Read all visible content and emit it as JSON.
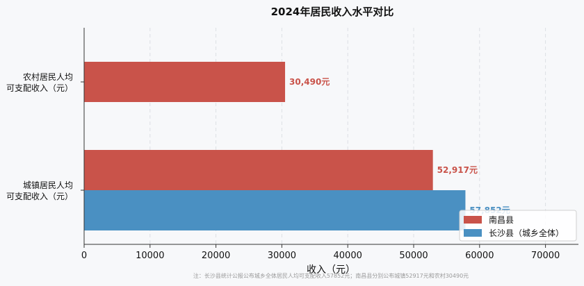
{
  "chart_data": {
    "type": "bar",
    "orientation": "horizontal",
    "title": "2024年居民收入水平对比",
    "xlabel": "收入（元）",
    "ylabel": "",
    "xlim": [
      0,
      75000
    ],
    "xticks": [
      0,
      10000,
      20000,
      30000,
      40000,
      50000,
      60000,
      70000
    ],
    "grid": true,
    "legend_position": "bottom-right",
    "categories": [
      "农村居民人均\n可支配收入（元）",
      "城镇居民人均\n可支配收入（元）"
    ],
    "series": [
      {
        "name": "南昌县",
        "color": "#c9534a",
        "values": [
          30490,
          52917
        ],
        "labels": [
          "30,490元",
          "52,917元"
        ]
      },
      {
        "name": "长沙县（城乡全体）",
        "color": "#4a90c2",
        "values": [
          null,
          57852
        ],
        "labels": [
          null,
          "57,852元"
        ]
      }
    ],
    "footnote": "注：长沙县统计公报公布城乡全体居民人均可支配收入57852元；南昌县分别公布城镇52917元和农村30490元"
  }
}
